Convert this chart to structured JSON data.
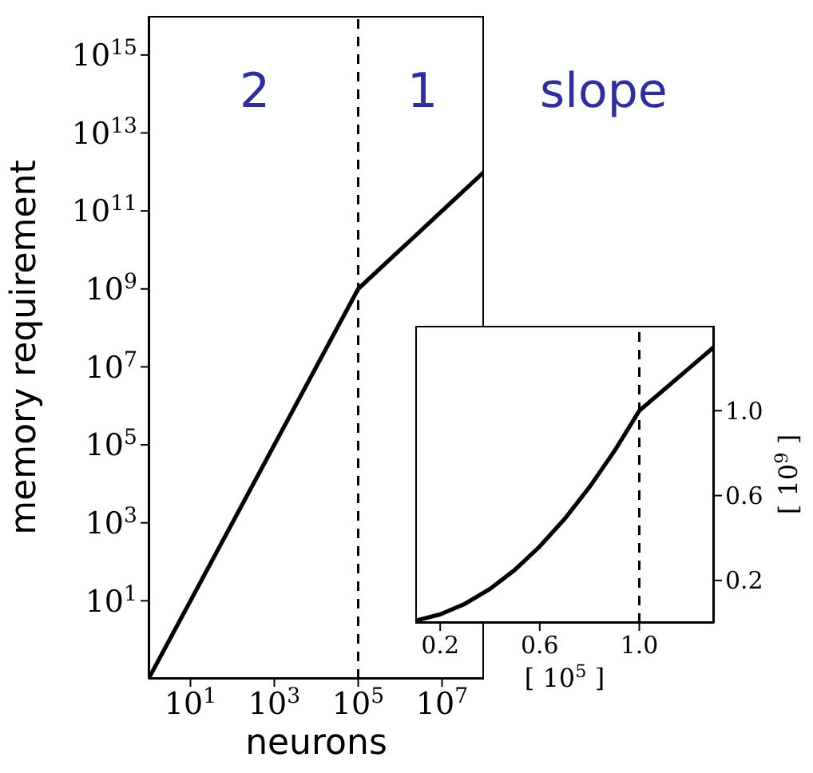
{
  "chart_data": [
    {
      "type": "line",
      "xlabel": "neurons",
      "ylabel": "memory requirement",
      "log": "xy",
      "x": [
        1,
        100000,
        100000000
      ],
      "series": [
        {
          "color": "#000000",
          "values": [
            0.1,
            1000000000,
            1000000000000
          ]
        }
      ],
      "xlim": [
        1,
        100000000
      ],
      "ylim": [
        0.1,
        10000000000000000
      ],
      "xticks": [
        {
          "value": 10,
          "label": "10$^{1}$"
        },
        {
          "value": 1000,
          "label": "10$^{3}$"
        },
        {
          "value": 100000,
          "label": "10$^{5}$"
        },
        {
          "value": 10000000,
          "label": "10$^{7}$"
        }
      ],
      "yticks": [
        {
          "value": 10,
          "label": "10$^{1}$"
        },
        {
          "value": 1000,
          "label": "10$^{3}$"
        },
        {
          "value": 100000,
          "label": "10$^{5}$"
        },
        {
          "value": 10000000,
          "label": "10$^{7}$"
        },
        {
          "value": 1000000000,
          "label": "10$^{9}$"
        },
        {
          "value": 100000000000,
          "label": "10$^{11}$"
        },
        {
          "value": 10000000000000,
          "label": "10$^{13}$"
        },
        {
          "value": 1000000000000000,
          "label": "10$^{15}$"
        }
      ],
      "ref_lines": [
        {
          "axis": "x",
          "value": 100000,
          "line_style": "dashed",
          "color": "#000000"
        }
      ],
      "annotations": [
        "2",
        "1",
        "slope"
      ]
    },
    {
      "type": "line",
      "xlabel": "[ 10$^{5}$ ]",
      "y2label": "[ 10$^{9}$ ]",
      "x": [
        0.1,
        0.2,
        0.3,
        0.4,
        0.5,
        0.6,
        0.7,
        0.8,
        0.9,
        1.0,
        1.1,
        1.2,
        1.3
      ],
      "series": [
        {
          "color": "#000000",
          "axis": "y2",
          "values": [
            0.01,
            0.04,
            0.09,
            0.16,
            0.25,
            0.36,
            0.49,
            0.64,
            0.81,
            1.0,
            1.1,
            1.2,
            1.3
          ]
        }
      ],
      "xlim": [
        0.1,
        1.3
      ],
      "y2lim": [
        0,
        1.4
      ],
      "xticks": [
        0.2,
        0.6,
        {
          "value": 1,
          "label": "1.0"
        }
      ],
      "y2ticks": [
        0.2,
        0.6,
        {
          "value": 1,
          "label": "1.0"
        }
      ],
      "ref_lines": [
        {
          "axis": "x",
          "value": 1,
          "line_style": "dashed",
          "color": "#000000"
        }
      ]
    }
  ]
}
